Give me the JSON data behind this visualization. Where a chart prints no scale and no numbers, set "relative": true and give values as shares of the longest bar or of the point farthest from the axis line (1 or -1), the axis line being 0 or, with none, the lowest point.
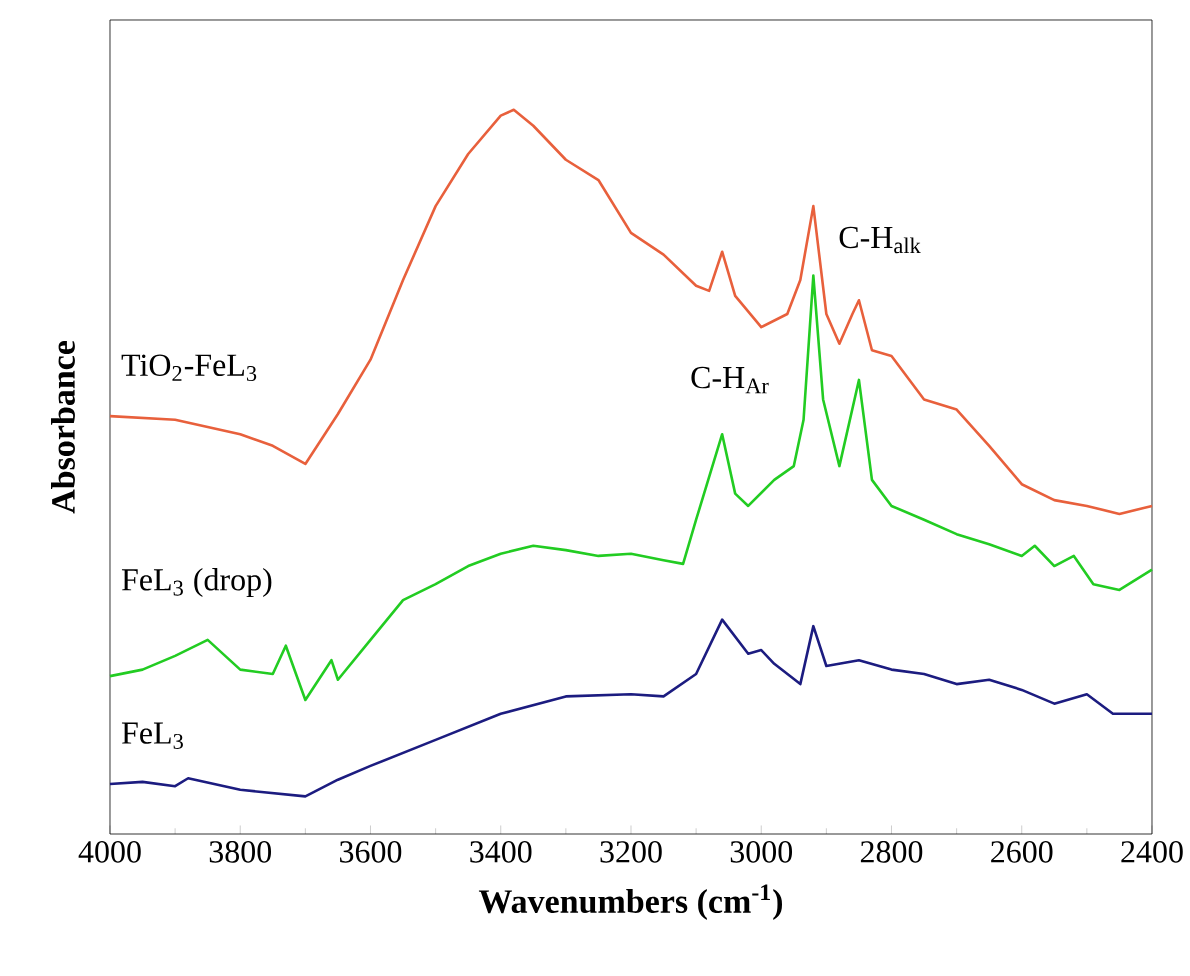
{
  "chart_data": {
    "type": "line",
    "relative": true,
    "xlabel": "Wavenumbers (cm$^{-1}$)",
    "ylabel": "Absorbance",
    "xlim": [
      4000,
      2400
    ],
    "xticks": [
      4000,
      3800,
      3600,
      3400,
      3200,
      3000,
      2800,
      2600,
      2400
    ],
    "annotations": [
      "C-H$_{Ar}$",
      "C-H$_{alk}$"
    ],
    "series": [
      {
        "name": "TiO$_{2}$-FeL$_{3}$",
        "color": "#e8603c",
        "x": [
          4000,
          3900,
          3800,
          3750,
          3700,
          3650,
          3600,
          3550,
          3500,
          3450,
          3400,
          3380,
          3350,
          3300,
          3250,
          3200,
          3150,
          3100,
          3080,
          3060,
          3040,
          3000,
          2960,
          2940,
          2920,
          2900,
          2880,
          2860,
          2850,
          2830,
          2800,
          2750,
          2700,
          2650,
          2600,
          2550,
          2500,
          2450,
          2400
        ],
        "values": [
          0.577,
          0.572,
          0.552,
          0.536,
          0.511,
          0.58,
          0.655,
          0.765,
          0.867,
          0.939,
          0.992,
          1.0,
          0.978,
          0.931,
          0.903,
          0.83,
          0.8,
          0.757,
          0.75,
          0.804,
          0.743,
          0.7,
          0.718,
          0.765,
          0.867,
          0.718,
          0.677,
          0.718,
          0.737,
          0.668,
          0.66,
          0.6,
          0.586,
          0.536,
          0.483,
          0.461,
          0.453,
          0.442,
          0.453
        ]
      },
      {
        "name": "FeL$_{3}$ (drop)",
        "color": "#22cc22",
        "x": [
          4000,
          3950,
          3900,
          3850,
          3800,
          3750,
          3730,
          3700,
          3660,
          3650,
          3600,
          3550,
          3500,
          3450,
          3400,
          3350,
          3300,
          3250,
          3200,
          3150,
          3120,
          3100,
          3060,
          3040,
          3020,
          2980,
          2950,
          2935,
          2920,
          2905,
          2880,
          2850,
          2830,
          2800,
          2750,
          2700,
          2650,
          2600,
          2580,
          2550,
          2520,
          2490,
          2450,
          2400
        ],
        "values": [
          0.218,
          0.227,
          0.246,
          0.268,
          0.227,
          0.221,
          0.26,
          0.185,
          0.24,
          0.213,
          0.268,
          0.323,
          0.345,
          0.37,
          0.387,
          0.398,
          0.392,
          0.384,
          0.387,
          0.378,
          0.373,
          0.434,
          0.552,
          0.47,
          0.453,
          0.489,
          0.508,
          0.572,
          0.771,
          0.6,
          0.508,
          0.627,
          0.489,
          0.453,
          0.434,
          0.414,
          0.4,
          0.384,
          0.398,
          0.37,
          0.384,
          0.345,
          0.337,
          0.365
        ]
      },
      {
        "name": "FeL$_{3}$",
        "color": "#1c1c80",
        "x": [
          4000,
          3950,
          3900,
          3880,
          3800,
          3700,
          3650,
          3600,
          3500,
          3400,
          3300,
          3200,
          3150,
          3100,
          3060,
          3020,
          3000,
          2980,
          2940,
          2920,
          2900,
          2850,
          2800,
          2750,
          2700,
          2650,
          2600,
          2550,
          2500,
          2460,
          2400
        ],
        "values": [
          0.069,
          0.072,
          0.066,
          0.077,
          0.061,
          0.052,
          0.075,
          0.094,
          0.13,
          0.166,
          0.19,
          0.193,
          0.19,
          0.221,
          0.296,
          0.249,
          0.254,
          0.235,
          0.207,
          0.287,
          0.232,
          0.24,
          0.227,
          0.221,
          0.207,
          0.213,
          0.199,
          0.18,
          0.193,
          0.166,
          0.166
        ]
      }
    ]
  }
}
